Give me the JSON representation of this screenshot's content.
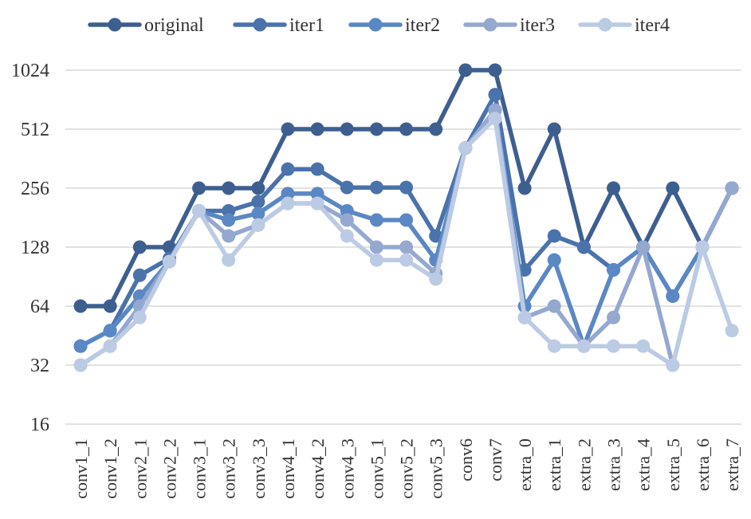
{
  "chart_data": {
    "type": "line",
    "title": "",
    "xlabel": "",
    "ylabel": "",
    "y_scale": "log2",
    "ylim": [
      16,
      1024
    ],
    "y_ticks": [
      16,
      32,
      64,
      128,
      256,
      512,
      1024
    ],
    "grid": true,
    "legend_position": "top",
    "categories": [
      "conv1_1",
      "conv1_2",
      "conv2_1",
      "conv2_2",
      "conv3_1",
      "conv3_2",
      "conv3_3",
      "conv4_1",
      "conv4_2",
      "conv4_3",
      "conv5_1",
      "conv5_2",
      "conv5_3",
      "conv6",
      "conv7",
      "extra_0",
      "extra_1",
      "extra_2",
      "extra_3",
      "extra_4",
      "extra_5",
      "extra_6",
      "extra_7"
    ],
    "series": [
      {
        "name": "original",
        "color": "#3d5f8f",
        "values": [
          64,
          64,
          128,
          128,
          256,
          256,
          256,
          512,
          512,
          512,
          512,
          512,
          512,
          1024,
          1024,
          256,
          512,
          128,
          256,
          128,
          256,
          128,
          256
        ]
      },
      {
        "name": "iter1",
        "color": "#4a72ab",
        "values": [
          40,
          48,
          92,
          112,
          196,
          196,
          218,
          320,
          320,
          258,
          258,
          258,
          146,
          410,
          768,
          98,
          146,
          128,
          98,
          128,
          72,
          128,
          256
        ]
      },
      {
        "name": "iter2",
        "color": "#5a88c4",
        "values": [
          40,
          48,
          72,
          108,
          196,
          176,
          190,
          240,
          240,
          196,
          176,
          176,
          110,
          410,
          640,
          64,
          110,
          40,
          98,
          128,
          72,
          128,
          256
        ]
      },
      {
        "name": "iter3",
        "color": "#94a8d0",
        "values": [
          32,
          40,
          64,
          108,
          196,
          146,
          166,
          214,
          214,
          176,
          128,
          128,
          94,
          410,
          640,
          56,
          64,
          40,
          56,
          128,
          32,
          128,
          256
        ]
      },
      {
        "name": "iter4",
        "color": "#bccbe4",
        "values": [
          32,
          40,
          56,
          108,
          196,
          110,
          166,
          214,
          214,
          146,
          110,
          110,
          88,
          410,
          580,
          56,
          40,
          40,
          40,
          40,
          32,
          128,
          48
        ]
      }
    ]
  }
}
